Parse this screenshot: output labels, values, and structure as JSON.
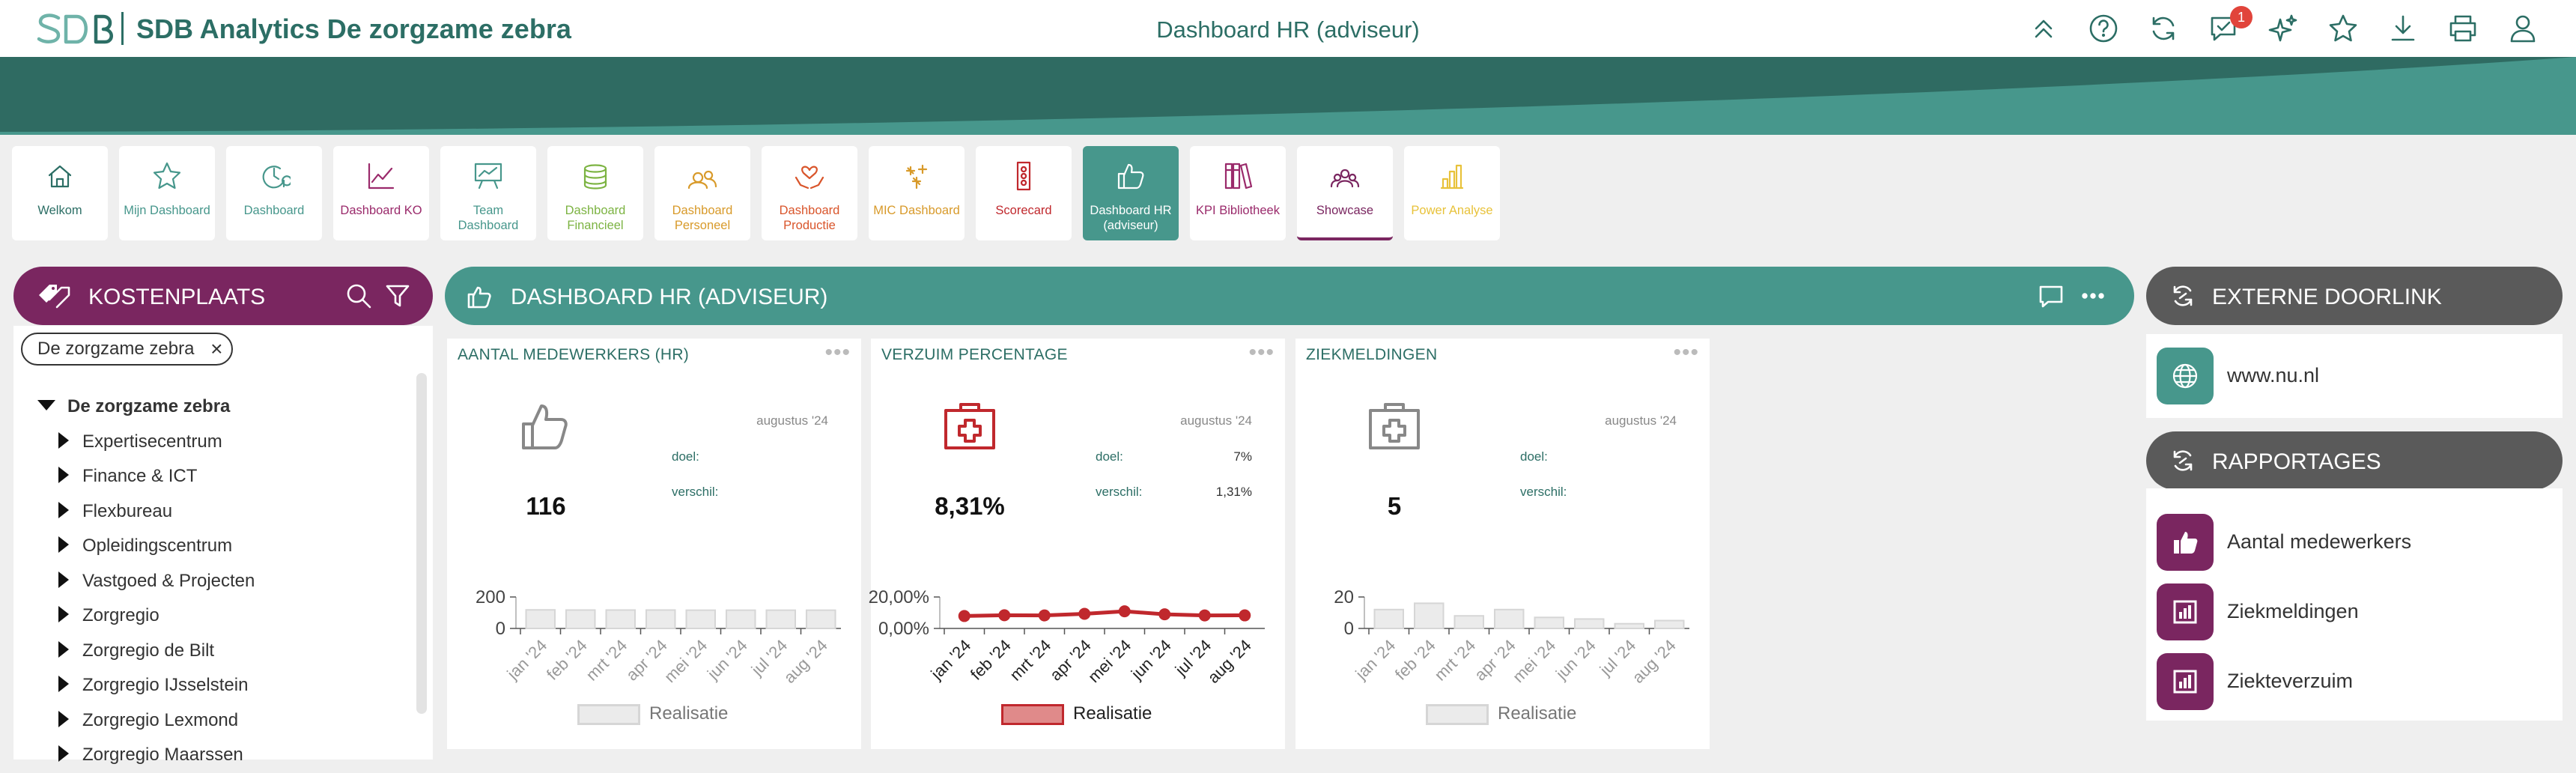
{
  "header": {
    "logo_text": "SDB",
    "app_title": "SDB Analytics De zorgzame zebra",
    "page_title": "Dashboard HR (adviseur)",
    "notification_count": "1",
    "icons": [
      "chevrons-up-icon",
      "help-icon",
      "refresh-icon",
      "comment-icon",
      "sparkle-icon",
      "star-icon",
      "download-icon",
      "print-icon",
      "user-icon"
    ]
  },
  "colors": {
    "primary": "#2c6e65",
    "teal": "#47978c",
    "purple": "#7a2660",
    "gray_panel": "#5a5a5a",
    "red": "#c0282d"
  },
  "tiles": [
    {
      "label": "Welkom",
      "icon": "home-icon",
      "color": "#2c6e65"
    },
    {
      "label": "Mijn Dashboard",
      "icon": "star-icon",
      "color": "#47978c"
    },
    {
      "label": "Dashboard",
      "icon": "clock-dollar-icon",
      "color": "#47978c"
    },
    {
      "label": "Dashboard KO",
      "icon": "line-chart-icon",
      "color": "#9a2a6b"
    },
    {
      "label": "Team Dashboard",
      "icon": "presentation-icon",
      "color": "#47978c"
    },
    {
      "label": "Dashboard Financieel",
      "icon": "coins-icon",
      "color": "#7cb342"
    },
    {
      "label": "Dashboard Personeel",
      "icon": "people-icon",
      "color": "#d89a2a"
    },
    {
      "label": "Dashboard Productie",
      "icon": "heart-hands-icon",
      "color": "#d9552b"
    },
    {
      "label": "MIC Dashboard",
      "icon": "fireworks-icon",
      "color": "#d89a2a"
    },
    {
      "label": "Scorecard",
      "icon": "traffic-light-icon",
      "color": "#c0282d"
    },
    {
      "label": "Dashboard HR (adviseur)",
      "icon": "thumbs-up-icon",
      "color": "#ffffff"
    },
    {
      "label": "KPI Bibliotheek",
      "icon": "books-icon",
      "color": "#9a2a6b"
    },
    {
      "label": "Showcase",
      "icon": "group-icon",
      "color": "#7a2660"
    },
    {
      "label": "Power Analyse",
      "icon": "bar-chart-icon",
      "color": "#e8c23a"
    }
  ],
  "left_panel": {
    "title": "KOSTENPLAATS",
    "filter_chip": "De zorgzame zebra",
    "tree_root": "De zorgzame zebra",
    "tree_items": [
      "Expertisecentrum",
      "Finance & ICT",
      "Flexbureau",
      "Opleidingscentrum",
      "Vastgoed & Projecten",
      "Zorgregio",
      "Zorgregio de Bilt",
      "Zorgregio IJsselstein",
      "Zorgregio Lexmond",
      "Zorgregio Maarssen"
    ]
  },
  "main_panel": {
    "title": "DASHBOARD HR (ADVISEUR)"
  },
  "cards": [
    {
      "title": "AANTAL MEDEWERKERS (HR)",
      "period": "augustus '24",
      "doel_label": "doel:",
      "doel_value": "",
      "verschil_label": "verschil:",
      "verschil_value": "",
      "value": "116",
      "icon": "thumbs-up-icon",
      "legend": "Realisatie"
    },
    {
      "title": "VERZUIM PERCENTAGE",
      "period": "augustus '24",
      "doel_label": "doel:",
      "doel_value": "7%",
      "verschil_label": "verschil:",
      "verschil_value": "1,31%",
      "value": "8,31%",
      "icon": "first-aid-kit-icon",
      "legend": "Realisatie"
    },
    {
      "title": "ZIEKMELDINGEN",
      "period": "augustus '24",
      "doel_label": "doel:",
      "doel_value": "",
      "verschil_label": "verschil:",
      "verschil_value": "",
      "value": "5",
      "icon": "first-aid-kit-icon",
      "legend": "Realisatie"
    }
  ],
  "chart_data": [
    {
      "type": "bar",
      "categories": [
        "jan '24",
        "feb '24",
        "mrt '24",
        "apr '24",
        "mei '24",
        "jun '24",
        "jul '24",
        "aug '24"
      ],
      "series": [
        {
          "name": "Realisatie",
          "values": [
            118,
            117,
            117,
            117,
            116,
            116,
            116,
            116
          ]
        }
      ],
      "ylim": [
        0,
        200
      ],
      "yticks": [
        "0",
        "200"
      ],
      "grid": false,
      "legend": "bottom"
    },
    {
      "type": "line",
      "categories": [
        "jan '24",
        "feb '24",
        "mrt '24",
        "apr '24",
        "mei '24",
        "jun '24",
        "jul '24",
        "aug '24"
      ],
      "series": [
        {
          "name": "Realisatie",
          "values": [
            7.9,
            8.4,
            8.3,
            9.3,
            10.9,
            9.0,
            8.3,
            8.31
          ]
        }
      ],
      "ylim": [
        0,
        20
      ],
      "yticks": [
        "0,00%",
        "20,00%"
      ],
      "grid": false,
      "legend": "bottom"
    },
    {
      "type": "bar",
      "categories": [
        "jan '24",
        "feb '24",
        "mrt '24",
        "apr '24",
        "mei '24",
        "jun '24",
        "jul '24",
        "aug '24"
      ],
      "series": [
        {
          "name": "Realisatie",
          "values": [
            12,
            16,
            8,
            12,
            7,
            6,
            3,
            5
          ]
        }
      ],
      "ylim": [
        0,
        20
      ],
      "yticks": [
        "0",
        "20"
      ],
      "grid": false,
      "legend": "bottom"
    }
  ],
  "right_panel": {
    "externe_title": "EXTERNE DOORLINK",
    "externe_items": [
      {
        "label": "www.nu.nl",
        "icon": "globe-icon"
      }
    ],
    "rapportages_title": "RAPPORTAGES",
    "rapportages_items": [
      {
        "label": "Aantal medewerkers",
        "icon": "thumbs-up-icon"
      },
      {
        "label": "Ziekmeldingen",
        "icon": "report-icon"
      },
      {
        "label": "Ziekteverzuim",
        "icon": "report-icon"
      }
    ]
  }
}
